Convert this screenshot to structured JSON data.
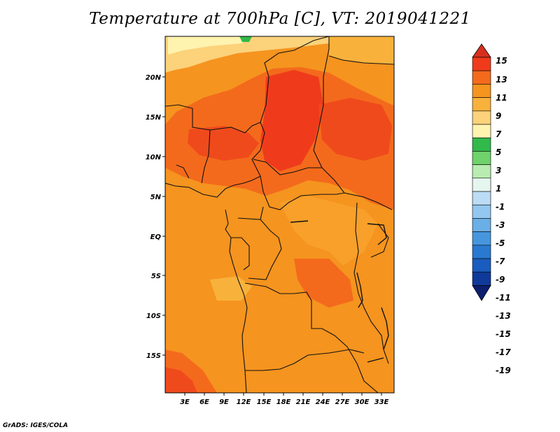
{
  "title": "Temperature at 700hPa [C], VT: 2019041221",
  "credit": "GrADS: IGES/COLA",
  "map": {
    "lon_ticks": [
      "3E",
      "6E",
      "9E",
      "12E",
      "15E",
      "18E",
      "21E",
      "24E",
      "27E",
      "30E",
      "33E"
    ],
    "lat_ticks": [
      "20N",
      "15N",
      "10N",
      "5N",
      "EQ",
      "5S",
      "10S",
      "15S"
    ]
  },
  "colorbar": {
    "labels": [
      "15",
      "13",
      "11",
      "9",
      "7",
      "5",
      "3",
      "1",
      "-1",
      "-3",
      "-5",
      "-7",
      "-9",
      "-11",
      "-13",
      "-15",
      "-17",
      "-19"
    ],
    "colors": {
      "top_triangle": "#d7301f",
      "c13_15": "#ef3b1c",
      "c11_13": "#f46a1c",
      "c9_11": "#f5941f",
      "c7_9": "#f8b23c",
      "c5_7": "#fcd27a",
      "c3_5": "#fff3b0",
      "c1_3": "#31b94a",
      "cm1_1": "#6fd26a",
      "cm3_m1": "#b8ecb0",
      "cm5_m3": "#e4f6ee",
      "cm7_m5": "#bcdcf5",
      "cm9_m7": "#93c7ef",
      "cm11_m9": "#6aafe6",
      "cm13_m11": "#4696de",
      "cm15_m13": "#2a79d0",
      "cm17_m15": "#1a5cbf",
      "cm19_m17": "#0f3a9a",
      "bottom_triangle": "#0b1f6e"
    }
  }
}
